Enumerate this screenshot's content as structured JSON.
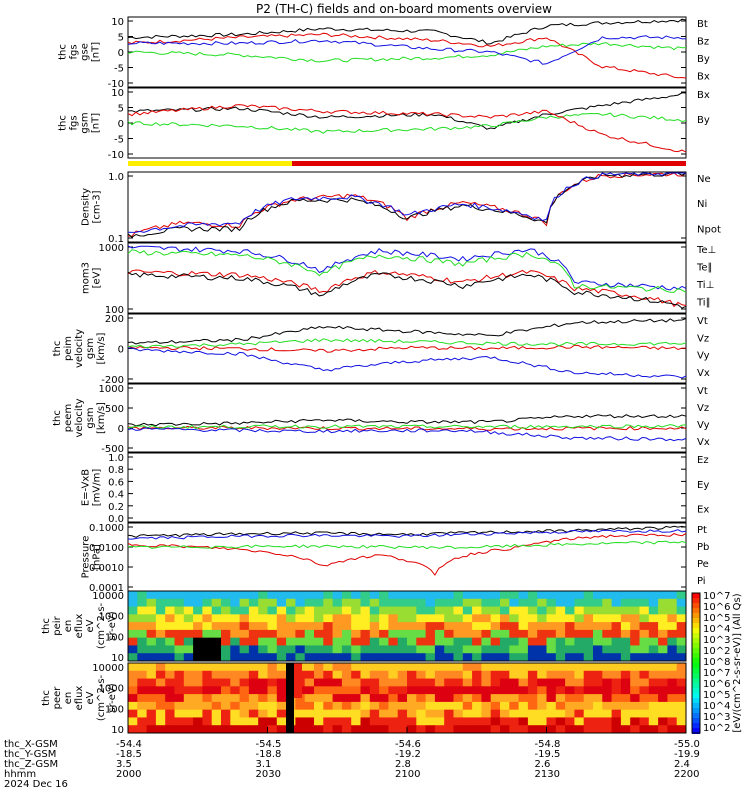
{
  "title": "P2 (TH-C) fields and on-board moments overview",
  "colors": {
    "black": "#000000",
    "red": "#e00000",
    "green": "#22dd22",
    "blue": "#1010e0",
    "yellow": "#ffee00"
  },
  "chart_data": [
    {
      "type": "line",
      "ylabel": [
        "thc",
        "fgs",
        "gse",
        "[nT]"
      ],
      "yticks": [
        "10",
        "5",
        "0",
        "-5",
        "-10"
      ],
      "ylim": [
        -12,
        12
      ],
      "series": [
        {
          "name": "Bt",
          "color": "#000000",
          "points": [
            [
              0,
              5
            ],
            [
              0.2,
              6
            ],
            [
              0.35,
              8
            ],
            [
              0.55,
              7
            ],
            [
              0.65,
              3
            ],
            [
              0.75,
              9
            ],
            [
              0.85,
              10
            ],
            [
              1,
              11
            ]
          ]
        },
        {
          "name": "Bz",
          "color": "#e00000",
          "points": [
            [
              0,
              3
            ],
            [
              0.2,
              5
            ],
            [
              0.35,
              6
            ],
            [
              0.55,
              4
            ],
            [
              0.65,
              2
            ],
            [
              0.75,
              5
            ],
            [
              0.85,
              -5
            ],
            [
              1,
              -9
            ]
          ]
        },
        {
          "name": "By",
          "color": "#22dd22",
          "points": [
            [
              0,
              0
            ],
            [
              0.2,
              -1
            ],
            [
              0.35,
              -3
            ],
            [
              0.55,
              -2
            ],
            [
              0.65,
              -1
            ],
            [
              0.75,
              2
            ],
            [
              0.85,
              3
            ],
            [
              1,
              1
            ]
          ]
        },
        {
          "name": "Bx",
          "color": "#1010e0",
          "points": [
            [
              0,
              3
            ],
            [
              0.2,
              3
            ],
            [
              0.35,
              4
            ],
            [
              0.55,
              1
            ],
            [
              0.65,
              0
            ],
            [
              0.75,
              -4
            ],
            [
              0.85,
              5
            ],
            [
              1,
              5
            ]
          ]
        }
      ]
    },
    {
      "type": "line",
      "ylabel": [
        "thc",
        "fgs",
        "gsm",
        "[nT]"
      ],
      "yticks": [
        "10",
        "5",
        "0",
        "-5",
        "-10"
      ],
      "ylim": [
        -12,
        12
      ],
      "series": [
        {
          "name": "Bx",
          "color": "#000000",
          "points": [
            [
              0,
              4
            ],
            [
              0.2,
              5
            ],
            [
              0.35,
              2
            ],
            [
              0.55,
              3
            ],
            [
              0.65,
              -2
            ],
            [
              0.75,
              3
            ],
            [
              0.85,
              6
            ],
            [
              1,
              10
            ]
          ]
        },
        {
          "name": "By",
          "color": "#22dd22",
          "points": [
            [
              0,
              0
            ],
            [
              0.2,
              -1
            ],
            [
              0.35,
              -3
            ],
            [
              0.55,
              -2
            ],
            [
              0.65,
              -1
            ],
            [
              0.75,
              2
            ],
            [
              0.85,
              3
            ],
            [
              1,
              1
            ]
          ]
        },
        {
          "name": "",
          "color": "#e00000",
          "points": [
            [
              0,
              3
            ],
            [
              0.2,
              6
            ],
            [
              0.35,
              4
            ],
            [
              0.55,
              3
            ],
            [
              0.65,
              2
            ],
            [
              0.75,
              4
            ],
            [
              0.85,
              -4
            ],
            [
              1,
              -10
            ]
          ]
        }
      ]
    },
    {
      "type": "line",
      "ylabel": [
        "Density",
        "[cm-3]"
      ],
      "yticks": [
        "1.0",
        "0.1"
      ],
      "log": true,
      "ylim": [
        0.08,
        10
      ],
      "series": [
        {
          "name": "Ne",
          "color": "#e00000",
          "points": [
            [
              0,
              0.12
            ],
            [
              0.1,
              0.3
            ],
            [
              0.2,
              0.25
            ],
            [
              0.3,
              1.5
            ],
            [
              0.4,
              2
            ],
            [
              0.5,
              0.4
            ],
            [
              0.6,
              1.2
            ],
            [
              0.75,
              0.3
            ],
            [
              0.85,
              8
            ],
            [
              1,
              9
            ]
          ]
        },
        {
          "name": "Ni",
          "color": "#000000",
          "points": [
            [
              0,
              0.12
            ],
            [
              0.1,
              0.2
            ],
            [
              0.2,
              0.2
            ],
            [
              0.3,
              1.4
            ],
            [
              0.4,
              1.5
            ],
            [
              0.5,
              0.4
            ],
            [
              0.6,
              1.0
            ],
            [
              0.75,
              0.3
            ],
            [
              0.85,
              8
            ],
            [
              1,
              9
            ]
          ]
        },
        {
          "name": "Npot",
          "color": "#1010e0",
          "points": [
            [
              0,
              0.15
            ],
            [
              0.1,
              0.25
            ],
            [
              0.2,
              0.3
            ],
            [
              0.3,
              1.6
            ],
            [
              0.4,
              1.8
            ],
            [
              0.5,
              0.5
            ],
            [
              0.6,
              1.1
            ],
            [
              0.75,
              0.35
            ],
            [
              0.85,
              8.5
            ],
            [
              1,
              9.5
            ]
          ]
        }
      ]
    },
    {
      "type": "line",
      "ylabel": [
        "mom3",
        "[eV]"
      ],
      "yticks": [
        "1000",
        "100"
      ],
      "log": true,
      "ylim": [
        20,
        2000
      ],
      "series": [
        {
          "name": "Te⊥",
          "color": "#e00000",
          "points": [
            [
              0,
              300
            ],
            [
              0.2,
              250
            ],
            [
              0.35,
              80
            ],
            [
              0.45,
              300
            ],
            [
              0.6,
              150
            ],
            [
              0.72,
              300
            ],
            [
              0.8,
              100
            ],
            [
              1,
              30
            ]
          ]
        },
        {
          "name": "Te∥",
          "color": "#000000",
          "points": [
            [
              0,
              250
            ],
            [
              0.2,
              200
            ],
            [
              0.35,
              60
            ],
            [
              0.45,
              250
            ],
            [
              0.6,
              120
            ],
            [
              0.72,
              250
            ],
            [
              0.8,
              80
            ],
            [
              1,
              30
            ]
          ]
        },
        {
          "name": "Ti⊥",
          "color": "#1010e0",
          "points": [
            [
              0,
              1500
            ],
            [
              0.2,
              1200
            ],
            [
              0.35,
              300
            ],
            [
              0.45,
              1200
            ],
            [
              0.6,
              700
            ],
            [
              0.72,
              1300
            ],
            [
              0.8,
              150
            ],
            [
              1,
              100
            ]
          ]
        },
        {
          "name": "Ti∥",
          "color": "#22dd22",
          "points": [
            [
              0,
              1100
            ],
            [
              0.2,
              900
            ],
            [
              0.35,
              250
            ],
            [
              0.45,
              900
            ],
            [
              0.6,
              500
            ],
            [
              0.72,
              1000
            ],
            [
              0.8,
              120
            ],
            [
              1,
              90
            ]
          ]
        }
      ]
    },
    {
      "type": "line",
      "ylabel": [
        "thc",
        "peim",
        "velocity",
        "gsm",
        "[km/s]"
      ],
      "yticks": [
        "200",
        "0",
        "-200"
      ],
      "ylim": [
        -400,
        400
      ],
      "series": [
        {
          "name": "Vt",
          "color": "#000000",
          "points": [
            [
              0,
              60
            ],
            [
              0.2,
              100
            ],
            [
              0.35,
              250
            ],
            [
              0.5,
              200
            ],
            [
              0.65,
              150
            ],
            [
              0.8,
              300
            ],
            [
              1,
              330
            ]
          ]
        },
        {
          "name": "Vz",
          "color": "#e00000",
          "points": [
            [
              0,
              10
            ],
            [
              0.2,
              0
            ],
            [
              0.35,
              -30
            ],
            [
              0.5,
              10
            ],
            [
              0.65,
              0
            ],
            [
              0.8,
              20
            ],
            [
              1,
              0
            ]
          ]
        },
        {
          "name": "Vy",
          "color": "#22dd22",
          "points": [
            [
              0,
              20
            ],
            [
              0.2,
              50
            ],
            [
              0.35,
              100
            ],
            [
              0.5,
              80
            ],
            [
              0.65,
              60
            ],
            [
              0.8,
              50
            ],
            [
              1,
              60
            ]
          ]
        },
        {
          "name": "Vx",
          "color": "#1010e0",
          "points": [
            [
              0,
              -10
            ],
            [
              0.2,
              -60
            ],
            [
              0.35,
              -250
            ],
            [
              0.5,
              -150
            ],
            [
              0.65,
              -100
            ],
            [
              0.8,
              -280
            ],
            [
              1,
              -330
            ]
          ]
        }
      ]
    },
    {
      "type": "line",
      "ylabel": [
        "thc",
        "peem",
        "velocity",
        "gsm",
        "[km/s]"
      ],
      "yticks": [
        "1000",
        "500",
        "0",
        "-500"
      ],
      "ylim": [
        -600,
        1100
      ],
      "series": [
        {
          "name": "Vt",
          "color": "#000000",
          "points": [
            [
              0,
              80
            ],
            [
              0.2,
              120
            ],
            [
              0.35,
              200
            ],
            [
              0.5,
              150
            ],
            [
              0.65,
              150
            ],
            [
              0.8,
              300
            ],
            [
              1,
              300
            ]
          ]
        },
        {
          "name": "Vz",
          "color": "#e00000",
          "points": [
            [
              0,
              0
            ],
            [
              0.3,
              0
            ],
            [
              0.6,
              -20
            ],
            [
              1,
              0
            ]
          ]
        },
        {
          "name": "Vy",
          "color": "#22dd22",
          "points": [
            [
              0,
              20
            ],
            [
              0.3,
              40
            ],
            [
              0.6,
              30
            ],
            [
              1,
              50
            ]
          ]
        },
        {
          "name": "Vx",
          "color": "#1010e0",
          "points": [
            [
              0,
              -20
            ],
            [
              0.3,
              -80
            ],
            [
              0.6,
              -60
            ],
            [
              0.8,
              -250
            ],
            [
              1,
              -280
            ]
          ]
        }
      ]
    },
    {
      "type": "line",
      "ylabel": [
        "E=-VxB",
        "[mV/m]"
      ],
      "yticks": [
        "1.0",
        "0.8",
        "0.6",
        "0.4",
        "0.2",
        "0.0"
      ],
      "ylim": [
        0,
        1
      ],
      "series": [
        {
          "name": "Ez",
          "color": "#e00000",
          "points": []
        },
        {
          "name": "Ey",
          "color": "#22dd22",
          "points": []
        },
        {
          "name": "Ex",
          "color": "#1010e0",
          "points": []
        }
      ]
    },
    {
      "type": "line",
      "ylabel": [
        "Pressure",
        "[nPa]"
      ],
      "yticks": [
        "0.1000",
        "0.0100",
        "0.0010",
        "0.0001"
      ],
      "log": true,
      "ylim": [
        5e-05,
        0.2
      ],
      "series": [
        {
          "name": "Pt",
          "color": "#000000",
          "points": [
            [
              0,
              0.04
            ],
            [
              0.3,
              0.06
            ],
            [
              0.5,
              0.05
            ],
            [
              0.8,
              0.08
            ],
            [
              1,
              0.12
            ]
          ]
        },
        {
          "name": "Pb",
          "color": "#e00000",
          "points": [
            [
              0,
              0.015
            ],
            [
              0.2,
              0.008
            ],
            [
              0.35,
              0.001
            ],
            [
              0.45,
              0.004
            ],
            [
              0.55,
              0.0003
            ],
            [
              0.7,
              0.01
            ],
            [
              0.85,
              0.04
            ],
            [
              1,
              0.05
            ]
          ]
        },
        {
          "name": "Pe",
          "color": "#22dd22",
          "points": [
            [
              0,
              0.01
            ],
            [
              0.3,
              0.012
            ],
            [
              0.6,
              0.01
            ],
            [
              0.8,
              0.015
            ],
            [
              1,
              0.02
            ]
          ]
        },
        {
          "name": "Pi",
          "color": "#1010e0",
          "points": [
            [
              0,
              0.03
            ],
            [
              0.3,
              0.045
            ],
            [
              0.5,
              0.04
            ],
            [
              0.8,
              0.07
            ],
            [
              1,
              0.08
            ]
          ]
        }
      ]
    },
    {
      "type": "heatmap",
      "ylabel": [
        "thc",
        "peir",
        "en",
        "eflux",
        "eV",
        "(cm^2-s-",
        "sr-eV)"
      ],
      "yticks": [
        "10000",
        "1000",
        "100",
        "10"
      ]
    },
    {
      "type": "heatmap",
      "ylabel": [
        "thc",
        "peer",
        "en",
        "eflux",
        "eV",
        "(cm^2-s-",
        "sr-eV)"
      ],
      "yticks": [
        "10000",
        "1000",
        "100",
        "10"
      ]
    }
  ],
  "colorbar": {
    "label": "[eV/(cm^2-s-sr-eV)] (All Qs)",
    "ticks": [
      "10^7",
      "10^6",
      "10^5",
      "10^4",
      "10^3",
      "10^2",
      "10^8",
      "10^7",
      "10^6",
      "10^5",
      "10^4",
      "10^3",
      "10^2"
    ]
  },
  "xaxis": {
    "row_labels": [
      "thc_X-GSM",
      "thc_Y-GSM",
      "thc_Z-GSM",
      "hhmm",
      "2024 Dec 16"
    ],
    "columns": [
      {
        "x": "-54.4",
        "y": "-18.5",
        "z": "3.5",
        "t": "2000"
      },
      {
        "x": "-54.5",
        "y": "-18.8",
        "z": "3.1",
        "t": "2030"
      },
      {
        "x": "-54.6",
        "y": "-19.2",
        "z": "2.8",
        "t": "2100"
      },
      {
        "x": "-54.8",
        "y": "-19.5",
        "z": "2.6",
        "t": "2130"
      },
      {
        "x": "-55.0",
        "y": "-19.9",
        "z": "2.4",
        "t": "2200"
      }
    ]
  }
}
